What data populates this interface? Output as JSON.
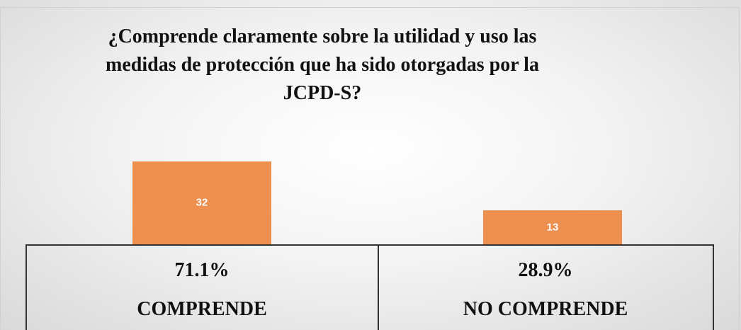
{
  "chart_data": {
    "type": "bar",
    "title": "¿Comprende claramente sobre la utilidad y uso las medidas de protección que ha sido otorgadas por la JCPD-S?",
    "categories": [
      "COMPRENDE",
      "NO COMPRENDE"
    ],
    "values": [
      32,
      13
    ],
    "percent_labels": [
      "71.1%",
      "28.9%"
    ],
    "color": "#ed8f4e"
  }
}
